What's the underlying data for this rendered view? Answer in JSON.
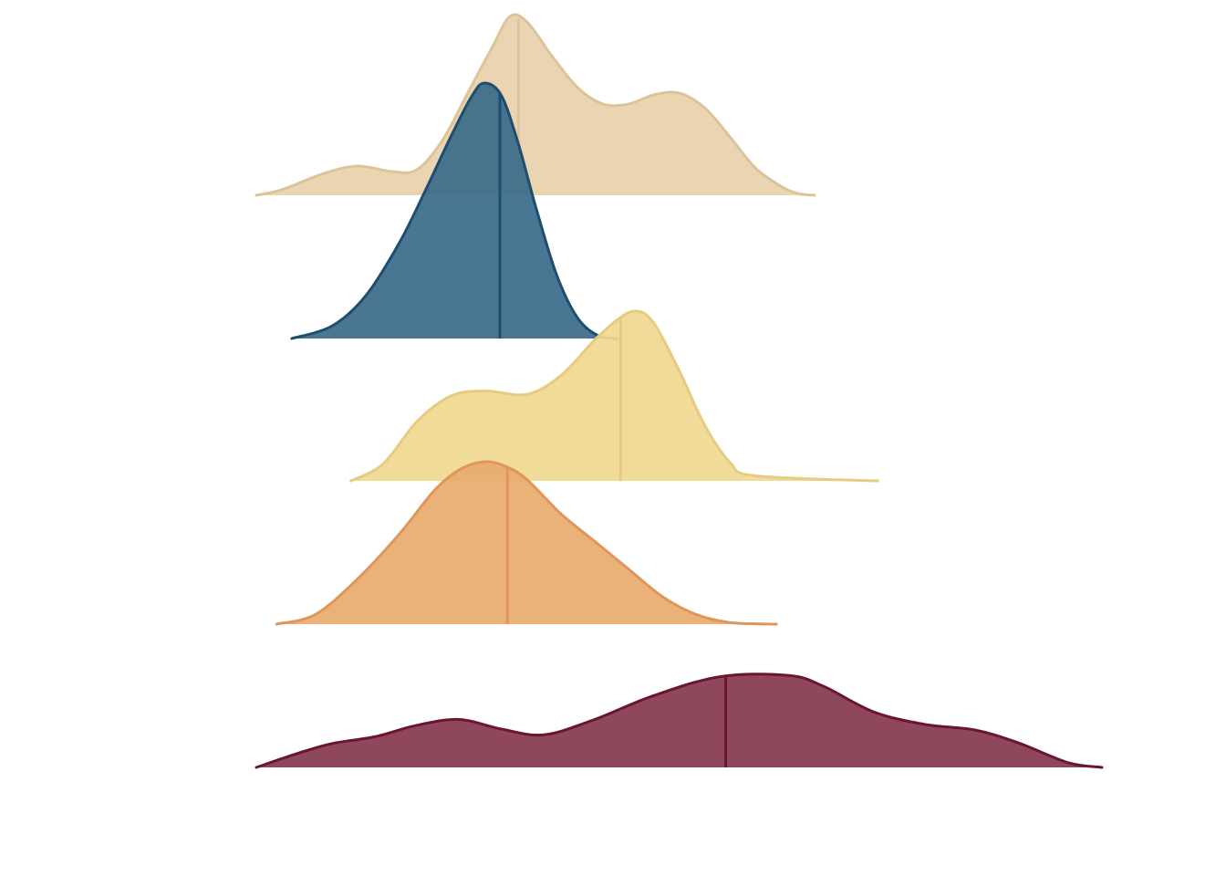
{
  "chart_data": {
    "type": "ridgeline",
    "title": "",
    "xlabel": "",
    "ylabel": "",
    "grid": false,
    "legend": "none",
    "xlim": [
      0,
      100
    ],
    "series": [
      {
        "color": "#e8d0ab",
        "median": 31.0,
        "density": [
          [
            0,
            0.0
          ],
          [
            3,
            0.03
          ],
          [
            8,
            0.12
          ],
          [
            12,
            0.16
          ],
          [
            16,
            0.13
          ],
          [
            19,
            0.14
          ],
          [
            22,
            0.3
          ],
          [
            25,
            0.56
          ],
          [
            28,
            0.82
          ],
          [
            30,
            0.98
          ],
          [
            32,
            0.95
          ],
          [
            35,
            0.76
          ],
          [
            38,
            0.59
          ],
          [
            41,
            0.5
          ],
          [
            44,
            0.5
          ],
          [
            47,
            0.55
          ],
          [
            50,
            0.56
          ],
          [
            53,
            0.48
          ],
          [
            56,
            0.32
          ],
          [
            59,
            0.15
          ],
          [
            62,
            0.05
          ],
          [
            64,
            0.01
          ],
          [
            66,
            0.0
          ]
        ]
      },
      {
        "color": "#3a6a89",
        "median": 28.8,
        "density": [
          [
            4.2,
            0.0
          ],
          [
            9,
            0.05
          ],
          [
            13,
            0.17
          ],
          [
            17,
            0.38
          ],
          [
            20,
            0.58
          ],
          [
            23,
            0.79
          ],
          [
            25.5,
            0.95
          ],
          [
            27,
            1.0
          ],
          [
            29,
            0.95
          ],
          [
            31,
            0.76
          ],
          [
            33,
            0.52
          ],
          [
            35.5,
            0.25
          ],
          [
            38,
            0.08
          ],
          [
            40.5,
            0.01
          ],
          [
            42.7,
            0.0
          ]
        ]
      },
      {
        "color": "#f0d890",
        "median": 43.1,
        "density": [
          [
            11.2,
            0.0
          ],
          [
            15,
            0.1
          ],
          [
            19,
            0.35
          ],
          [
            23,
            0.5
          ],
          [
            27,
            0.53
          ],
          [
            32,
            0.51
          ],
          [
            36,
            0.62
          ],
          [
            40,
            0.83
          ],
          [
            43,
            0.96
          ],
          [
            45,
            1.0
          ],
          [
            47,
            0.93
          ],
          [
            50,
            0.65
          ],
          [
            53,
            0.33
          ],
          [
            56,
            0.11
          ],
          [
            59,
            0.03
          ],
          [
            73.5,
            0.0
          ]
        ]
      },
      {
        "color": "#e8ab6e",
        "median": 29.7,
        "density": [
          [
            2.4,
            0.0
          ],
          [
            7,
            0.06
          ],
          [
            12,
            0.28
          ],
          [
            17,
            0.56
          ],
          [
            21,
            0.82
          ],
          [
            24,
            0.95
          ],
          [
            27,
            1.0
          ],
          [
            29.5,
            0.97
          ],
          [
            32,
            0.89
          ],
          [
            36,
            0.68
          ],
          [
            40,
            0.51
          ],
          [
            44,
            0.34
          ],
          [
            48,
            0.17
          ],
          [
            52,
            0.06
          ],
          [
            56,
            0.01
          ],
          [
            61.5,
            0.0
          ]
        ]
      },
      {
        "color": "#86384d",
        "median": 55.5,
        "density": [
          [
            0,
            0.0
          ],
          [
            5,
            0.15
          ],
          [
            9,
            0.25
          ],
          [
            14,
            0.32
          ],
          [
            19,
            0.44
          ],
          [
            24,
            0.5
          ],
          [
            29,
            0.4
          ],
          [
            34,
            0.34
          ],
          [
            40,
            0.5
          ],
          [
            47,
            0.75
          ],
          [
            55,
            0.95
          ],
          [
            63,
            0.96
          ],
          [
            67,
            0.85
          ],
          [
            73,
            0.58
          ],
          [
            79,
            0.45
          ],
          [
            85,
            0.39
          ],
          [
            90,
            0.26
          ],
          [
            96,
            0.05
          ],
          [
            100,
            0.0
          ]
        ]
      }
    ]
  }
}
